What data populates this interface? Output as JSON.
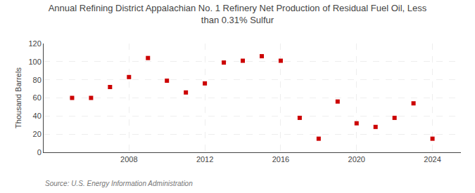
{
  "chart_data": {
    "type": "scatter",
    "title": "Annual Refining District Appalachian No. 1 Refinery Net Production of Residual Fuel Oil, Less\nthan 0.31% Sulfur",
    "ylabel": "Thousand Barrels",
    "source": "Source: U.S. Energy Information Administration",
    "x": [
      2005,
      2006,
      2007,
      2008,
      2009,
      2010,
      2011,
      2012,
      2013,
      2014,
      2015,
      2016,
      2017,
      2018,
      2019,
      2020,
      2021,
      2022,
      2023,
      2024
    ],
    "values": [
      60,
      60,
      72,
      83,
      104,
      79,
      66,
      76,
      99,
      101,
      106,
      101,
      38,
      15,
      56,
      32,
      28,
      38,
      54,
      15
    ],
    "color": "#cc0000",
    "marker": "square",
    "xlim": [
      2003.5,
      2025.5
    ],
    "xticks": [
      2008,
      2012,
      2016,
      2020,
      2024
    ],
    "ylim": [
      0,
      120
    ],
    "yticks": [
      0,
      20,
      40,
      60,
      80,
      100,
      120
    ],
    "grid": true
  }
}
